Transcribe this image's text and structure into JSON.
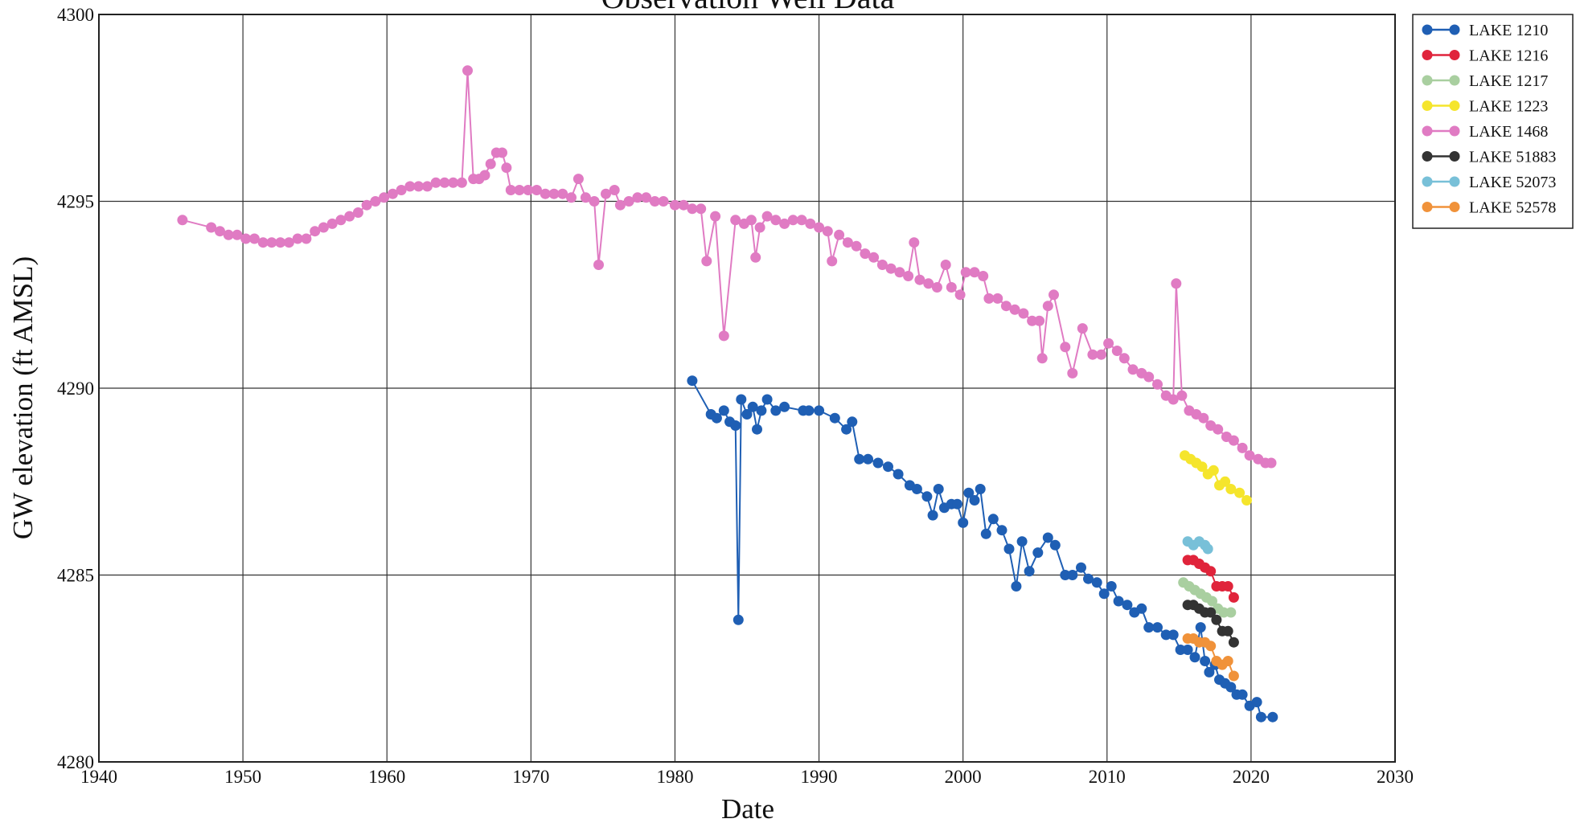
{
  "chart_data": {
    "type": "line",
    "title": "Observation Well Data",
    "xlabel": "Date",
    "ylabel": "GW elevation (ft AMSL)",
    "xlim": [
      1940,
      2030
    ],
    "ylim": [
      4280,
      4300
    ],
    "x_ticks": [
      "1940",
      "1950",
      "1960",
      "1970",
      "1980",
      "1990",
      "2000",
      "2010",
      "2020",
      "2030"
    ],
    "y_ticks": [
      "4280",
      "4285",
      "4290",
      "4295",
      "4300"
    ],
    "grid": true,
    "legend_position": "outside-top-right",
    "series": [
      {
        "name": "LAKE 1210",
        "color": "#1f5fb4",
        "points": [
          [
            1981.2,
            4290.2
          ],
          [
            1982.5,
            4289.3
          ],
          [
            1982.9,
            4289.2
          ],
          [
            1983.4,
            4289.4
          ],
          [
            1983.8,
            4289.1
          ],
          [
            1984.2,
            4289.0
          ],
          [
            1984.4,
            4283.8
          ],
          [
            1984.6,
            4289.7
          ],
          [
            1985.0,
            4289.3
          ],
          [
            1985.4,
            4289.5
          ],
          [
            1985.7,
            4288.9
          ],
          [
            1986.0,
            4289.4
          ],
          [
            1986.4,
            4289.7
          ],
          [
            1987.0,
            4289.4
          ],
          [
            1987.6,
            4289.5
          ],
          [
            1988.9,
            4289.4
          ],
          [
            1989.3,
            4289.4
          ],
          [
            1990.0,
            4289.4
          ],
          [
            1991.1,
            4289.2
          ],
          [
            1991.9,
            4288.9
          ],
          [
            1992.3,
            4289.1
          ],
          [
            1992.8,
            4288.1
          ],
          [
            1993.4,
            4288.1
          ],
          [
            1994.1,
            4288.0
          ],
          [
            1994.8,
            4287.9
          ],
          [
            1995.5,
            4287.7
          ],
          [
            1996.3,
            4287.4
          ],
          [
            1996.8,
            4287.3
          ],
          [
            1997.5,
            4287.1
          ],
          [
            1997.9,
            4286.6
          ],
          [
            1998.3,
            4287.3
          ],
          [
            1998.7,
            4286.8
          ],
          [
            1999.2,
            4286.9
          ],
          [
            1999.6,
            4286.9
          ],
          [
            2000.0,
            4286.4
          ],
          [
            2000.4,
            4287.2
          ],
          [
            2000.8,
            4287.0
          ],
          [
            2001.2,
            4287.3
          ],
          [
            2001.6,
            4286.1
          ],
          [
            2002.1,
            4286.5
          ],
          [
            2002.7,
            4286.2
          ],
          [
            2003.2,
            4285.7
          ],
          [
            2003.7,
            4284.7
          ],
          [
            2004.1,
            4285.9
          ],
          [
            2004.6,
            4285.1
          ],
          [
            2005.2,
            4285.6
          ],
          [
            2005.9,
            4286.0
          ],
          [
            2006.4,
            4285.8
          ],
          [
            2007.1,
            4285.0
          ],
          [
            2007.6,
            4285.0
          ],
          [
            2008.2,
            4285.2
          ],
          [
            2008.7,
            4284.9
          ],
          [
            2009.3,
            4284.8
          ],
          [
            2009.8,
            4284.5
          ],
          [
            2010.3,
            4284.7
          ],
          [
            2010.8,
            4284.3
          ],
          [
            2011.4,
            4284.2
          ],
          [
            2011.9,
            4284.0
          ],
          [
            2012.4,
            4284.1
          ],
          [
            2012.9,
            4283.6
          ],
          [
            2013.5,
            4283.6
          ],
          [
            2014.1,
            4283.4
          ],
          [
            2014.6,
            4283.4
          ],
          [
            2015.1,
            4283.0
          ],
          [
            2015.6,
            4283.0
          ],
          [
            2016.1,
            4282.8
          ],
          [
            2016.5,
            4283.6
          ],
          [
            2016.8,
            4282.7
          ],
          [
            2017.1,
            4282.4
          ],
          [
            2017.5,
            4282.6
          ],
          [
            2017.8,
            4282.2
          ],
          [
            2018.2,
            4282.1
          ],
          [
            2018.6,
            4282.0
          ],
          [
            2019.0,
            4281.8
          ],
          [
            2019.4,
            4281.8
          ],
          [
            2019.9,
            4281.5
          ],
          [
            2020.4,
            4281.6
          ],
          [
            2020.7,
            4281.2
          ],
          [
            2021.5,
            4281.2
          ]
        ]
      },
      {
        "name": "LAKE 1216",
        "color": "#e0243b",
        "points": [
          [
            2015.6,
            4285.4
          ],
          [
            2016.0,
            4285.4
          ],
          [
            2016.4,
            4285.3
          ],
          [
            2016.8,
            4285.2
          ],
          [
            2017.2,
            4285.1
          ],
          [
            2017.6,
            4284.7
          ],
          [
            2018.0,
            4284.7
          ],
          [
            2018.4,
            4284.7
          ],
          [
            2018.8,
            4284.4
          ]
        ]
      },
      {
        "name": "LAKE 1217",
        "color": "#a9cfa0",
        "points": [
          [
            2015.3,
            4284.8
          ],
          [
            2015.7,
            4284.7
          ],
          [
            2016.1,
            4284.6
          ],
          [
            2016.5,
            4284.5
          ],
          [
            2016.9,
            4284.4
          ],
          [
            2017.3,
            4284.3
          ],
          [
            2017.7,
            4284.1
          ],
          [
            2018.1,
            4284.0
          ],
          [
            2018.6,
            4284.0
          ]
        ]
      },
      {
        "name": "LAKE 1223",
        "color": "#f5e52c",
        "points": [
          [
            2015.4,
            4288.2
          ],
          [
            2015.8,
            4288.1
          ],
          [
            2016.2,
            4288.0
          ],
          [
            2016.6,
            4287.9
          ],
          [
            2017.0,
            4287.7
          ],
          [
            2017.4,
            4287.8
          ],
          [
            2017.8,
            4287.4
          ],
          [
            2018.2,
            4287.5
          ],
          [
            2018.6,
            4287.3
          ],
          [
            2019.2,
            4287.2
          ],
          [
            2019.7,
            4287.0
          ]
        ]
      },
      {
        "name": "LAKE 1468",
        "color": "#e07bc3",
        "points": [
          [
            1945.8,
            4294.5
          ],
          [
            1947.8,
            4294.3
          ],
          [
            1948.4,
            4294.2
          ],
          [
            1949.0,
            4294.1
          ],
          [
            1949.6,
            4294.1
          ],
          [
            1950.2,
            4294.0
          ],
          [
            1950.8,
            4294.0
          ],
          [
            1951.4,
            4293.9
          ],
          [
            1952.0,
            4293.9
          ],
          [
            1952.6,
            4293.9
          ],
          [
            1953.2,
            4293.9
          ],
          [
            1953.8,
            4294.0
          ],
          [
            1954.4,
            4294.0
          ],
          [
            1955.0,
            4294.2
          ],
          [
            1955.6,
            4294.3
          ],
          [
            1956.2,
            4294.4
          ],
          [
            1956.8,
            4294.5
          ],
          [
            1957.4,
            4294.6
          ],
          [
            1958.0,
            4294.7
          ],
          [
            1958.6,
            4294.9
          ],
          [
            1959.2,
            4295.0
          ],
          [
            1959.8,
            4295.1
          ],
          [
            1960.4,
            4295.2
          ],
          [
            1961.0,
            4295.3
          ],
          [
            1961.6,
            4295.4
          ],
          [
            1962.2,
            4295.4
          ],
          [
            1962.8,
            4295.4
          ],
          [
            1963.4,
            4295.5
          ],
          [
            1964.0,
            4295.5
          ],
          [
            1964.6,
            4295.5
          ],
          [
            1965.2,
            4295.5
          ],
          [
            1965.6,
            4298.5
          ],
          [
            1966.0,
            4295.6
          ],
          [
            1966.4,
            4295.6
          ],
          [
            1966.8,
            4295.7
          ],
          [
            1967.2,
            4296.0
          ],
          [
            1967.6,
            4296.3
          ],
          [
            1968.0,
            4296.3
          ],
          [
            1968.3,
            4295.9
          ],
          [
            1968.6,
            4295.3
          ],
          [
            1969.2,
            4295.3
          ],
          [
            1969.8,
            4295.3
          ],
          [
            1970.4,
            4295.3
          ],
          [
            1971.0,
            4295.2
          ],
          [
            1971.6,
            4295.2
          ],
          [
            1972.2,
            4295.2
          ],
          [
            1972.8,
            4295.1
          ],
          [
            1973.3,
            4295.6
          ],
          [
            1973.8,
            4295.1
          ],
          [
            1974.4,
            4295.0
          ],
          [
            1974.7,
            4293.3
          ],
          [
            1975.2,
            4295.2
          ],
          [
            1975.8,
            4295.3
          ],
          [
            1976.2,
            4294.9
          ],
          [
            1976.8,
            4295.0
          ],
          [
            1977.4,
            4295.1
          ],
          [
            1978.0,
            4295.1
          ],
          [
            1978.6,
            4295.0
          ],
          [
            1979.2,
            4295.0
          ],
          [
            1980.0,
            4294.9
          ],
          [
            1980.6,
            4294.9
          ],
          [
            1981.2,
            4294.8
          ],
          [
            1981.8,
            4294.8
          ],
          [
            1982.2,
            4293.4
          ],
          [
            1982.8,
            4294.6
          ],
          [
            1983.4,
            4291.4
          ],
          [
            1984.2,
            4294.5
          ],
          [
            1984.8,
            4294.4
          ],
          [
            1985.3,
            4294.5
          ],
          [
            1985.6,
            4293.5
          ],
          [
            1985.9,
            4294.3
          ],
          [
            1986.4,
            4294.6
          ],
          [
            1987.0,
            4294.5
          ],
          [
            1987.6,
            4294.4
          ],
          [
            1988.2,
            4294.5
          ],
          [
            1988.8,
            4294.5
          ],
          [
            1989.4,
            4294.4
          ],
          [
            1990.0,
            4294.3
          ],
          [
            1990.6,
            4294.2
          ],
          [
            1990.9,
            4293.4
          ],
          [
            1991.4,
            4294.1
          ],
          [
            1992.0,
            4293.9
          ],
          [
            1992.6,
            4293.8
          ],
          [
            1993.2,
            4293.6
          ],
          [
            1993.8,
            4293.5
          ],
          [
            1994.4,
            4293.3
          ],
          [
            1995.0,
            4293.2
          ],
          [
            1995.6,
            4293.1
          ],
          [
            1996.2,
            4293.0
          ],
          [
            1996.6,
            4293.9
          ],
          [
            1997.0,
            4292.9
          ],
          [
            1997.6,
            4292.8
          ],
          [
            1998.2,
            4292.7
          ],
          [
            1998.8,
            4293.3
          ],
          [
            1999.2,
            4292.7
          ],
          [
            1999.8,
            4292.5
          ],
          [
            2000.2,
            4293.1
          ],
          [
            2000.8,
            4293.1
          ],
          [
            2001.4,
            4293.0
          ],
          [
            2001.8,
            4292.4
          ],
          [
            2002.4,
            4292.4
          ],
          [
            2003.0,
            4292.2
          ],
          [
            2003.6,
            4292.1
          ],
          [
            2004.2,
            4292.0
          ],
          [
            2004.8,
            4291.8
          ],
          [
            2005.3,
            4291.8
          ],
          [
            2005.5,
            4290.8
          ],
          [
            2005.9,
            4292.2
          ],
          [
            2006.3,
            4292.5
          ],
          [
            2007.1,
            4291.1
          ],
          [
            2007.6,
            4290.4
          ],
          [
            2008.3,
            4291.6
          ],
          [
            2009.0,
            4290.9
          ],
          [
            2009.6,
            4290.9
          ],
          [
            2010.1,
            4291.2
          ],
          [
            2010.7,
            4291.0
          ],
          [
            2011.2,
            4290.8
          ],
          [
            2011.8,
            4290.5
          ],
          [
            2012.4,
            4290.4
          ],
          [
            2012.9,
            4290.3
          ],
          [
            2013.5,
            4290.1
          ],
          [
            2014.1,
            4289.8
          ],
          [
            2014.6,
            4289.7
          ],
          [
            2014.8,
            4292.8
          ],
          [
            2015.2,
            4289.8
          ],
          [
            2015.7,
            4289.4
          ],
          [
            2016.2,
            4289.3
          ],
          [
            2016.7,
            4289.2
          ],
          [
            2017.2,
            4289.0
          ],
          [
            2017.7,
            4288.9
          ],
          [
            2018.3,
            4288.7
          ],
          [
            2018.8,
            4288.6
          ],
          [
            2019.4,
            4288.4
          ],
          [
            2019.9,
            4288.2
          ],
          [
            2020.5,
            4288.1
          ],
          [
            2021.0,
            4288.0
          ],
          [
            2021.4,
            4288.0
          ]
        ]
      },
      {
        "name": "LAKE 51883",
        "color": "#333333",
        "points": [
          [
            2015.6,
            4284.2
          ],
          [
            2016.0,
            4284.2
          ],
          [
            2016.4,
            4284.1
          ],
          [
            2016.8,
            4284.0
          ],
          [
            2017.2,
            4284.0
          ],
          [
            2017.6,
            4283.8
          ],
          [
            2018.0,
            4283.5
          ],
          [
            2018.4,
            4283.5
          ],
          [
            2018.8,
            4283.2
          ]
        ]
      },
      {
        "name": "LAKE 52073",
        "color": "#78c0d8",
        "points": [
          [
            2015.6,
            4285.9
          ],
          [
            2016.0,
            4285.8
          ],
          [
            2016.4,
            4285.9
          ],
          [
            2016.8,
            4285.8
          ],
          [
            2017.0,
            4285.7
          ]
        ]
      },
      {
        "name": "LAKE 52578",
        "color": "#f0923a",
        "points": [
          [
            2015.6,
            4283.3
          ],
          [
            2016.0,
            4283.3
          ],
          [
            2016.4,
            4283.2
          ],
          [
            2016.8,
            4283.2
          ],
          [
            2017.2,
            4283.1
          ],
          [
            2017.6,
            4282.7
          ],
          [
            2018.0,
            4282.6
          ],
          [
            2018.4,
            4282.7
          ],
          [
            2018.8,
            4282.3
          ]
        ]
      }
    ]
  }
}
